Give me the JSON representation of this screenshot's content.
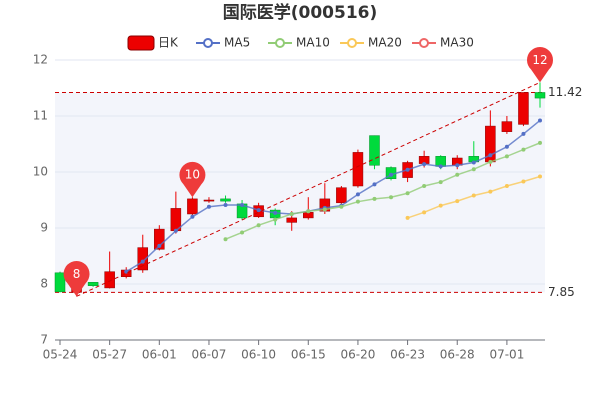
{
  "chart_data": {
    "type": "candlestick",
    "title": "国际医学(000516)",
    "categories": [
      "05-24",
      null,
      null,
      "05-27",
      null,
      null,
      "06-01",
      null,
      null,
      "06-07",
      null,
      null,
      "06-10",
      null,
      null,
      "06-15",
      null,
      null,
      "06-20",
      null,
      null,
      "06-23",
      null,
      null,
      "06-28",
      null,
      null,
      "07-01",
      null,
      null
    ],
    "candles": {
      "name": "日K",
      "up_color": "#ec0000",
      "down_color": "#00da3c",
      "open": [
        8.2,
        7.85,
        8.03,
        7.93,
        8.13,
        8.25,
        8.62,
        8.95,
        9.25,
        9.48,
        9.52,
        9.43,
        9.2,
        9.32,
        9.1,
        9.18,
        9.3,
        9.45,
        9.75,
        10.65,
        10.08,
        9.9,
        10.15,
        10.28,
        10.12,
        10.28,
        10.18,
        10.72,
        10.85,
        11.42
      ],
      "high": [
        8.22,
        7.98,
        8.03,
        8.58,
        8.3,
        8.88,
        9.05,
        9.65,
        9.55,
        9.55,
        9.58,
        9.5,
        9.45,
        9.35,
        9.3,
        9.55,
        9.8,
        9.75,
        10.4,
        10.65,
        10.1,
        10.2,
        10.38,
        10.3,
        10.3,
        10.55,
        11.1,
        11.0,
        11.42,
        11.6
      ],
      "low": [
        7.85,
        7.78,
        7.95,
        7.92,
        8.1,
        8.2,
        8.6,
        8.9,
        9.2,
        9.45,
        9.45,
        9.15,
        9.18,
        9.05,
        8.95,
        9.15,
        9.25,
        9.35,
        9.72,
        10.05,
        9.85,
        9.82,
        10.08,
        10.05,
        10.05,
        10.15,
        10.1,
        10.68,
        10.82,
        11.15
      ],
      "close": [
        7.86,
        7.95,
        7.97,
        8.22,
        8.25,
        8.65,
        8.98,
        9.35,
        9.52,
        9.5,
        9.48,
        9.18,
        9.4,
        9.18,
        9.18,
        9.28,
        9.52,
        9.72,
        10.35,
        10.12,
        9.88,
        10.17,
        10.28,
        10.1,
        10.25,
        10.18,
        10.82,
        10.9,
        11.42,
        11.32
      ]
    },
    "series": [
      {
        "name": "MA5",
        "color": "#5470c6",
        "values": [
          null,
          null,
          null,
          null,
          8.22,
          8.4,
          8.68,
          8.95,
          9.2,
          9.38,
          9.41,
          9.41,
          9.32,
          9.27,
          9.25,
          9.3,
          9.36,
          9.4,
          9.6,
          9.78,
          9.95,
          10.04,
          10.14,
          10.1,
          10.12,
          10.17,
          10.3,
          10.45,
          10.68,
          10.92
        ]
      },
      {
        "name": "MA10",
        "color": "#91cc75",
        "values": [
          null,
          null,
          null,
          null,
          null,
          null,
          null,
          null,
          null,
          null,
          8.8,
          8.92,
          9.05,
          9.15,
          9.25,
          9.3,
          9.33,
          9.38,
          9.47,
          9.52,
          9.55,
          9.62,
          9.75,
          9.82,
          9.95,
          10.05,
          10.18,
          10.28,
          10.4,
          10.52
        ]
      },
      {
        "name": "MA20",
        "color": "#fac858",
        "values": [
          null,
          null,
          null,
          null,
          null,
          null,
          null,
          null,
          null,
          null,
          null,
          null,
          null,
          null,
          null,
          null,
          null,
          null,
          null,
          null,
          null,
          9.18,
          9.28,
          9.4,
          9.48,
          9.58,
          9.65,
          9.75,
          9.83,
          9.92
        ]
      },
      {
        "name": "MA30",
        "color": "#ee6666",
        "values": [
          null,
          null,
          null,
          null,
          null,
          null,
          null,
          null,
          null,
          null,
          null,
          null,
          null,
          null,
          null,
          null,
          null,
          null,
          null,
          null,
          null,
          null,
          null,
          null,
          null,
          null,
          null,
          null,
          null,
          null
        ]
      }
    ],
    "reference_lines": [
      {
        "value": 11.42,
        "label": "11.42"
      },
      {
        "value": 7.85,
        "label": "7.85"
      }
    ],
    "annotations": [
      {
        "text": "8",
        "index": 1,
        "at": "low"
      },
      {
        "text": "10",
        "index": 8,
        "at": "high"
      },
      {
        "text": "12",
        "index": 29,
        "at": "high"
      }
    ],
    "ylim": [
      7,
      12
    ],
    "yticks": [
      7,
      8,
      9,
      10,
      11,
      12
    ],
    "grid": true
  }
}
